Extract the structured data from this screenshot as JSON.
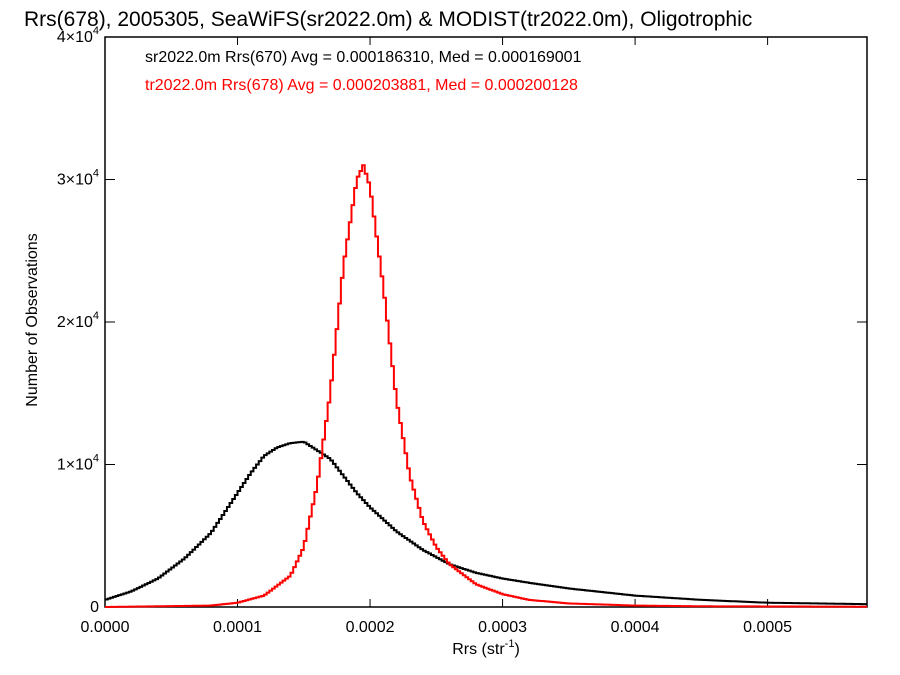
{
  "chart_data": {
    "type": "line",
    "title": "Rrs(678), 2005305, SeaWiFS(sr2022.0m) & MODIST(tr2022.0m), Oligotrophic",
    "xlabel": "Rrs (str",
    "xlabel_sup": "-1",
    "xlabel_close": ")",
    "ylabel": "Number of Observations",
    "xlim": [
      0,
      0.000575
    ],
    "ylim": [
      0,
      40000
    ],
    "x_ticks": [
      {
        "value": 0,
        "label": "0.0000"
      },
      {
        "value": 0.0001,
        "label": "0.0001"
      },
      {
        "value": 0.0002,
        "label": "0.0002"
      },
      {
        "value": 0.0003,
        "label": "0.0003"
      },
      {
        "value": 0.0004,
        "label": "0.0004"
      },
      {
        "value": 0.0005,
        "label": "0.0005"
      }
    ],
    "y_ticks": [
      {
        "value": 0,
        "base": "0",
        "sup": ""
      },
      {
        "value": 10000,
        "base": "1×10",
        "sup": "4"
      },
      {
        "value": 20000,
        "base": "2×10",
        "sup": "4"
      },
      {
        "value": 30000,
        "base": "3×10",
        "sup": "4"
      },
      {
        "value": 40000,
        "base": "4×10",
        "sup": "4"
      }
    ],
    "series": [
      {
        "legend": "sr2022.0m Rrs(670) Avg = 0.000186310, Med = 0.000169001",
        "color": "#000000",
        "x": [
          0,
          2e-05,
          4e-05,
          6e-05,
          8e-05,
          9e-05,
          0.0001,
          0.00011,
          0.00012,
          0.00013,
          0.00014,
          0.00015,
          0.00016,
          0.00017,
          0.00018,
          0.00019,
          0.0002,
          0.00022,
          0.00024,
          0.00026,
          0.00028,
          0.0003,
          0.00032,
          0.00035,
          0.0004,
          0.00045,
          0.0005,
          0.000575
        ],
        "y": [
          500,
          1100,
          2000,
          3400,
          5200,
          6600,
          8000,
          9400,
          10600,
          11200,
          11500,
          11600,
          11000,
          10400,
          9200,
          8000,
          7000,
          5300,
          4000,
          3000,
          2400,
          2000,
          1700,
          1300,
          800,
          500,
          300,
          200
        ]
      },
      {
        "legend": "tr2022.0m Rrs(678) Avg = 0.000203881, Med = 0.000200128",
        "color": "#ff0000",
        "x": [
          0,
          8e-05,
          0.0001,
          0.00012,
          0.00014,
          0.00015,
          0.00016,
          0.00017,
          0.00018,
          0.00019,
          0.000195,
          0.0002,
          0.00021,
          0.00022,
          0.00023,
          0.00024,
          0.00025,
          0.00026,
          0.00028,
          0.0003,
          0.00032,
          0.00035,
          0.0004,
          0.00045,
          0.000575
        ],
        "y": [
          0,
          100,
          300,
          800,
          2200,
          4200,
          8500,
          15000,
          24000,
          30000,
          31000,
          29500,
          22500,
          14500,
          9200,
          6000,
          4200,
          3000,
          1600,
          900,
          500,
          250,
          100,
          50,
          20
        ]
      }
    ]
  }
}
